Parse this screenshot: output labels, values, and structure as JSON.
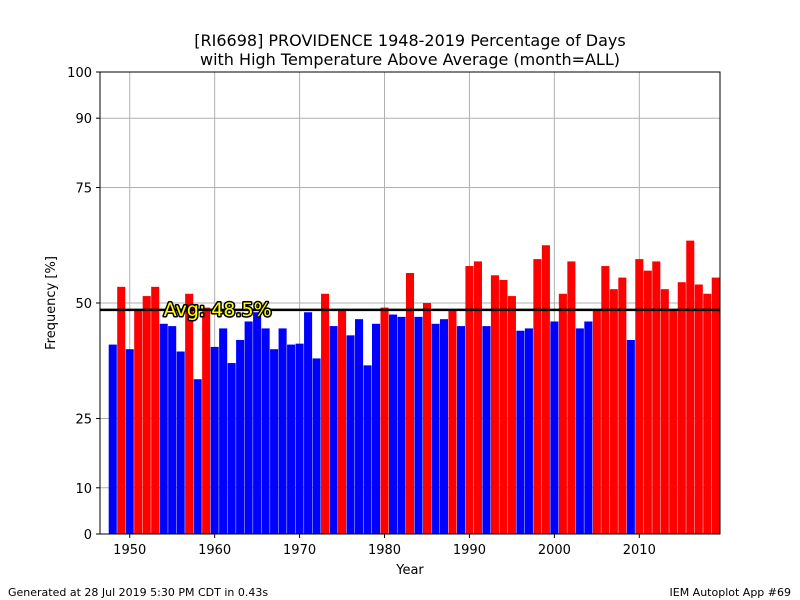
{
  "title_line1": "[RI6698] PROVIDENCE 1948-2019 Percentage of Days",
  "title_line2": "with High Temperature Above Average (month=ALL)",
  "footer_left": "Generated at 28 Jul 2019 5:30 PM CDT in 0.43s",
  "footer_right": "IEM Autoplot App #69",
  "chart_data": {
    "type": "bar",
    "xlabel": "Year",
    "ylabel": "Frequency [%]",
    "xlim": [
      1946.5,
      2019.5
    ],
    "ylim": [
      0,
      100
    ],
    "xticks": [
      1950,
      1960,
      1970,
      1980,
      1990,
      2000,
      2010
    ],
    "yticks": [
      0,
      10,
      25,
      50,
      75,
      90,
      100
    ],
    "grid": true,
    "average": 48.5,
    "average_label": "Avg: 48.5%",
    "colors": {
      "above": "#ff0000",
      "below": "#0000ff",
      "avg_line": "#000000",
      "avg_text": "#ffff00",
      "grid": "#b0b0b0"
    },
    "years": [
      1948,
      1949,
      1950,
      1951,
      1952,
      1953,
      1954,
      1955,
      1956,
      1957,
      1958,
      1959,
      1960,
      1961,
      1962,
      1963,
      1964,
      1965,
      1966,
      1967,
      1968,
      1969,
      1970,
      1971,
      1972,
      1973,
      1974,
      1975,
      1976,
      1977,
      1978,
      1979,
      1980,
      1981,
      1982,
      1983,
      1984,
      1985,
      1986,
      1987,
      1988,
      1989,
      1990,
      1991,
      1992,
      1993,
      1994,
      1995,
      1996,
      1997,
      1998,
      1999,
      2000,
      2001,
      2002,
      2003,
      2004,
      2005,
      2006,
      2007,
      2008,
      2009,
      2010,
      2011,
      2012,
      2013,
      2014,
      2015,
      2016,
      2017,
      2018,
      2019
    ],
    "values": [
      41,
      53.5,
      40,
      48.5,
      51.5,
      53.5,
      45.5,
      45,
      39.5,
      52,
      33.5,
      49,
      40.5,
      44.5,
      37,
      42,
      46,
      48,
      44.5,
      40,
      44.5,
      41,
      41.2,
      48,
      38,
      52,
      45,
      48.5,
      43,
      46.5,
      36.5,
      45.5,
      49,
      47.5,
      47,
      56.5,
      47,
      50,
      45.5,
      46.5,
      48.5,
      45,
      58,
      59,
      45,
      56,
      55,
      51.5,
      44,
      44.5,
      59.5,
      62.5,
      46,
      52,
      59,
      44.5,
      46,
      48.5,
      58,
      53,
      55.5,
      42,
      59.5,
      57,
      59,
      53,
      48.5,
      54.5,
      63.5,
      54,
      52,
      55.5
    ]
  }
}
